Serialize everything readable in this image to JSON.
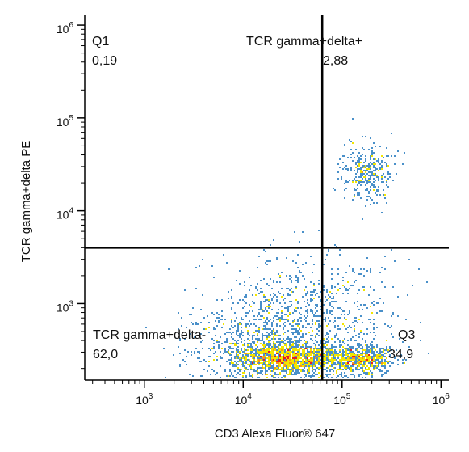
{
  "chart_data": {
    "type": "scatter",
    "subtype": "flow-cytometry-density-dot-plot",
    "xlabel": "CD3 Alexa Fluor® 647",
    "ylabel": "TCR gamma+delta  PE",
    "xscale": "log",
    "yscale": "log",
    "xlim": [
      250,
      1200000
    ],
    "ylim": [
      150,
      1300000
    ],
    "x_major_ticks": [
      {
        "value": 1000,
        "base": "10",
        "exp": "3"
      },
      {
        "value": 10000,
        "base": "10",
        "exp": "4"
      },
      {
        "value": 100000,
        "base": "10",
        "exp": "5"
      },
      {
        "value": 1000000,
        "base": "10",
        "exp": "6"
      }
    ],
    "y_major_ticks": [
      {
        "value": 1000,
        "base": "10",
        "exp": "3"
      },
      {
        "value": 10000,
        "base": "10",
        "exp": "4"
      },
      {
        "value": 100000,
        "base": "10",
        "exp": "5"
      },
      {
        "value": 1000000,
        "base": "10",
        "exp": "6"
      }
    ],
    "gates": {
      "x": 63000,
      "y": 4000
    },
    "quadrants": [
      {
        "id": "q1",
        "name": "Q1",
        "value": "0,19",
        "position": "top-left"
      },
      {
        "id": "q2",
        "name": "TCR gamma+delta+",
        "value": "2,88",
        "position": "top-right"
      },
      {
        "id": "q3",
        "name": "Q3",
        "value": "34,9",
        "position": "bottom-right"
      },
      {
        "id": "q4",
        "name": "TCR gamma+delta-",
        "value": "62,0",
        "position": "bottom-left"
      }
    ],
    "populations": [
      {
        "center": [
          28000,
          260
        ],
        "spread": [
          0.27,
          0.09
        ],
        "count": 1400
      },
      {
        "center": [
          150000,
          250
        ],
        "spread": [
          0.18,
          0.08
        ],
        "count": 700
      },
      {
        "center": [
          180000,
          26000
        ],
        "spread": [
          0.13,
          0.16
        ],
        "count": 320
      },
      {
        "center": [
          40000,
          700
        ],
        "spread": [
          0.45,
          0.32
        ],
        "count": 900
      },
      {
        "center": [
          12000,
          350
        ],
        "spread": [
          0.35,
          0.2
        ],
        "count": 500
      }
    ],
    "colormap": [
      "#3c4fa6",
      "#4a90c9",
      "#39b54a",
      "#f2e600",
      "#f7941d",
      "#e31e24"
    ],
    "grid": false
  }
}
